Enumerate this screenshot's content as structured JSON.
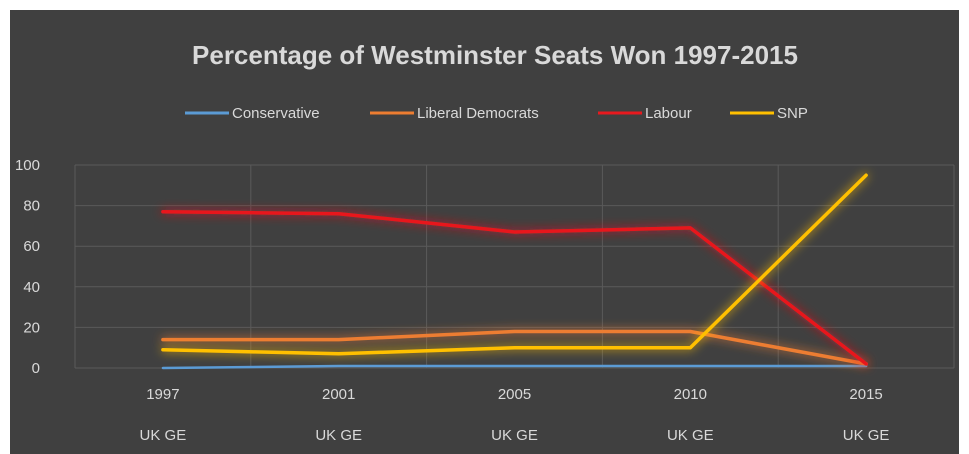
{
  "chart_data": {
    "type": "line",
    "title": "Percentage of Westminster Seats Won 1997-2015",
    "categories": [
      "1997",
      "2001",
      "2005",
      "2010",
      "2015"
    ],
    "category_sublabel": "UK GE",
    "ylim": [
      0,
      100
    ],
    "yticks": [
      0,
      20,
      40,
      60,
      80,
      100
    ],
    "grid": true,
    "legend_position": "top",
    "series": [
      {
        "name": "Conservative",
        "color": "#5b9bd5",
        "values": [
          0,
          1,
          1,
          1,
          1
        ]
      },
      {
        "name": "Liberal Democrats",
        "color": "#ed7d31",
        "values": [
          14,
          14,
          18,
          18,
          2
        ]
      },
      {
        "name": "Labour",
        "color": "#e8191e",
        "values": [
          77,
          76,
          67,
          69,
          2
        ]
      },
      {
        "name": "SNP",
        "color": "#ffc000",
        "values": [
          9,
          7,
          10,
          10,
          95
        ]
      }
    ]
  }
}
